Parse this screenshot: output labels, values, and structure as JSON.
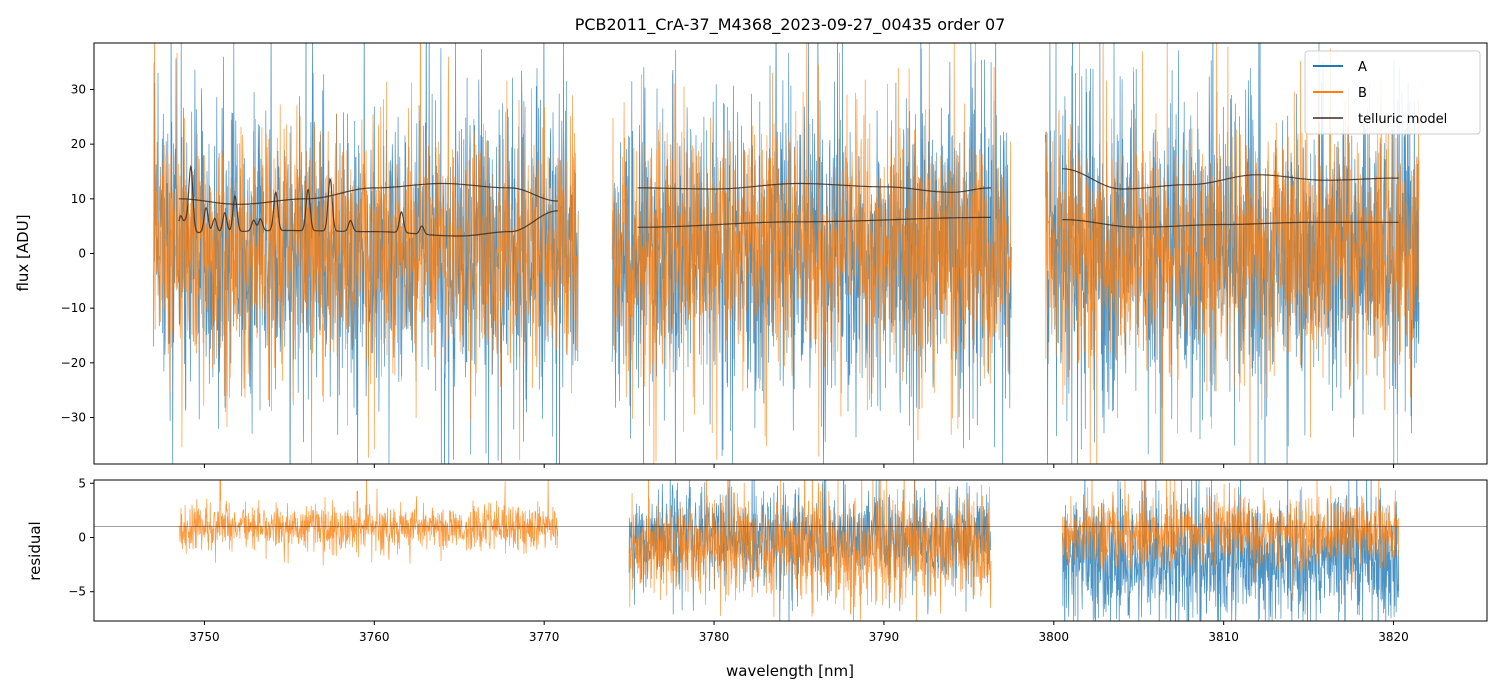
{
  "chart_data": {
    "type": "line",
    "title": "PCB2011_CrA-37_M4368_2023-09-27_00435  order 07",
    "xlabel": "wavelength [nm]",
    "xlim": [
      3743.5,
      3825.5
    ],
    "xticks": [
      3750,
      3760,
      3770,
      3780,
      3790,
      3800,
      3810,
      3820
    ],
    "segments": [
      {
        "x0": 3747.0,
        "x1": 3772.0
      },
      {
        "x0": 3774.0,
        "x1": 3797.5
      },
      {
        "x0": 3799.5,
        "x1": 3821.5
      }
    ],
    "panels": [
      {
        "name": "flux",
        "ylabel": "flux [ADU]",
        "ylim": [
          -38.5,
          38.5
        ],
        "yticks": [
          -30,
          -20,
          -10,
          0,
          10,
          20,
          30
        ],
        "series": [
          {
            "name": "A",
            "color": "#1f77b4",
            "noise_amplitude": 13,
            "center": 0
          },
          {
            "name": "B",
            "color": "#ff7f0e",
            "noise_amplitude": 11,
            "center": 1
          }
        ],
        "telluric_model": {
          "name": "telluric model",
          "color": "#3b2a1f",
          "upper_curves": [
            {
              "x": [
                3748.5,
                3752,
                3756,
                3760,
                3764,
                3768,
                3770.8
              ],
              "y": [
                10,
                9,
                10,
                12,
                12.8,
                12,
                9.6
              ]
            },
            {
              "x": [
                3775.5,
                3780,
                3785,
                3790,
                3794,
                3796.3
              ],
              "y": [
                12,
                11.8,
                12.8,
                12.2,
                11.2,
                12
              ]
            },
            {
              "x": [
                3800.5,
                3804,
                3808,
                3812,
                3816,
                3820.3
              ],
              "y": [
                15.5,
                11.8,
                12.6,
                14.4,
                13.4,
                13.8
              ]
            }
          ],
          "lower_curves": [
            {
              "x": [
                3748.5,
                3755,
                3760,
                3765,
                3768,
                3770.8
              ],
              "y": [
                3.8,
                4.2,
                4.0,
                3.2,
                4.0,
                7.8
              ]
            },
            {
              "x": [
                3775.5,
                3785,
                3796.3
              ],
              "y": [
                4.8,
                5.8,
                6.6
              ]
            },
            {
              "x": [
                3800.5,
                3805,
                3810,
                3815,
                3820.3
              ],
              "y": [
                6.2,
                4.8,
                5.3,
                5.7,
                5.7
              ]
            }
          ],
          "absorption_lines": [
            {
              "x": 3748.6,
              "depth": 3.0
            },
            {
              "x": 3748.9,
              "depth": 2.0
            },
            {
              "x": 3749.2,
              "depth": 12.0
            },
            {
              "x": 3750.1,
              "depth": 4.5
            },
            {
              "x": 3750.6,
              "depth": 2.5
            },
            {
              "x": 3751.2,
              "depth": 3.5
            },
            {
              "x": 3751.8,
              "depth": 6.5
            },
            {
              "x": 3752.9,
              "depth": 2.0
            },
            {
              "x": 3753.3,
              "depth": 2.2
            },
            {
              "x": 3754.2,
              "depth": 7.0
            },
            {
              "x": 3756.1,
              "depth": 7.5
            },
            {
              "x": 3757.4,
              "depth": 9.5
            },
            {
              "x": 3758.6,
              "depth": 2.0
            },
            {
              "x": 3761.6,
              "depth": 3.8
            },
            {
              "x": 3762.8,
              "depth": 1.5
            }
          ]
        }
      },
      {
        "name": "residual",
        "ylabel": "residual",
        "ylim": [
          -7.7,
          5.3
        ],
        "yticks": [
          -5,
          0,
          5
        ],
        "reference_line": 1.0,
        "ranges": [
          {
            "x0": 3748.5,
            "x1": 3770.8
          },
          {
            "x0": 3775.0,
            "x1": 3796.3
          },
          {
            "x0": 3800.5,
            "x1": 3820.3
          }
        ],
        "series": [
          {
            "name": "A",
            "color": "#1f77b4",
            "segment_centers": [
              1.0,
              0.0,
              -2.0
            ],
            "noise_amplitude": 3.0
          },
          {
            "name": "B",
            "color": "#ff7f0e",
            "segment_centers": [
              1.0,
              -0.8,
              0.4
            ],
            "noise_amplitude": 2.5
          }
        ]
      }
    ],
    "legend": {
      "position": "top-right",
      "entries": [
        "A",
        "B",
        "telluric model"
      ]
    }
  }
}
